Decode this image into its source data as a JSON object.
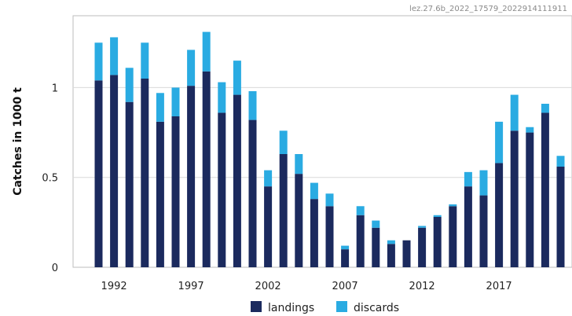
{
  "chart_id": "lez.27.6b_2022_17579_2022914111911",
  "chart_data": {
    "type": "bar",
    "stacked": true,
    "ylabel": "Catches in 1000 t",
    "ylim": [
      0,
      1.4
    ],
    "yticks": [
      0,
      0.5,
      1
    ],
    "ytick_labels": [
      "0",
      "0.5",
      "1"
    ],
    "xtick_labels": [
      "1992",
      "1997",
      "2002",
      "2007",
      "2012",
      "2017"
    ],
    "xtick_years": [
      1992,
      1997,
      2002,
      2007,
      2012,
      2017
    ],
    "categories": [
      1991,
      1992,
      1993,
      1994,
      1995,
      1996,
      1997,
      1998,
      1999,
      2000,
      2001,
      2002,
      2003,
      2004,
      2005,
      2006,
      2007,
      2008,
      2009,
      2010,
      2011,
      2012,
      2013,
      2014,
      2015,
      2016,
      2017,
      2018,
      2019,
      2020,
      2021
    ],
    "series": [
      {
        "name": "landings",
        "color": "#1b2a5e",
        "values": [
          1.04,
          1.07,
          0.92,
          1.05,
          0.81,
          0.84,
          1.01,
          1.09,
          0.86,
          0.96,
          0.82,
          0.45,
          0.63,
          0.52,
          0.38,
          0.34,
          0.1,
          0.29,
          0.22,
          0.13,
          0.15,
          0.22,
          0.28,
          0.34,
          0.45,
          0.4,
          0.58,
          0.76,
          0.75,
          0.86,
          0.56
        ]
      },
      {
        "name": "discards",
        "color": "#2aabe2",
        "values": [
          0.21,
          0.21,
          0.19,
          0.2,
          0.16,
          0.16,
          0.2,
          0.22,
          0.17,
          0.19,
          0.16,
          0.09,
          0.13,
          0.11,
          0.09,
          0.07,
          0.02,
          0.05,
          0.04,
          0.02,
          0.0,
          0.01,
          0.01,
          0.01,
          0.08,
          0.14,
          0.23,
          0.2,
          0.03,
          0.05,
          0.06
        ]
      }
    ],
    "grid": true,
    "legend": "bottom-center"
  }
}
